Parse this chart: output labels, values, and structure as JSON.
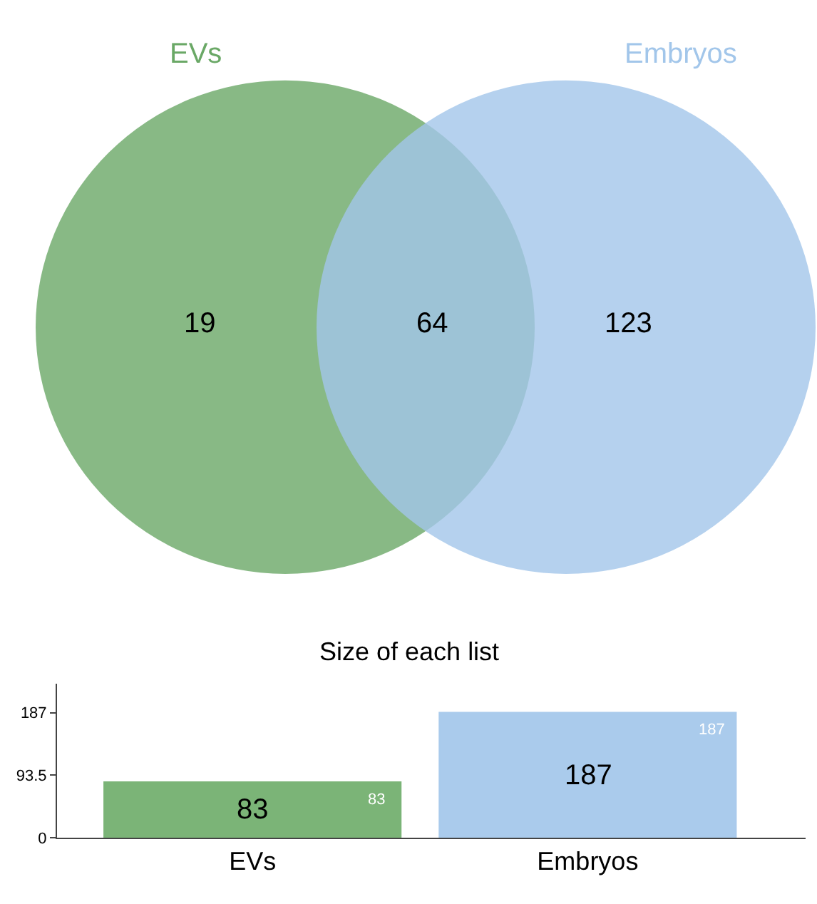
{
  "chart_data": [
    {
      "type": "other",
      "categories": [
        "EVs",
        "Embryos"
      ],
      "colors": [
        "#6aa866",
        "#a2c6ea"
      ],
      "annotations": [
        "19",
        "64",
        "123"
      ]
    },
    {
      "type": "bar",
      "title": "Size of each list",
      "categories": [
        "EVs",
        "Embryos"
      ],
      "values": [
        83,
        187
      ],
      "colors": [
        "#7bb477",
        "#aacbec"
      ],
      "ylim": [
        0,
        230
      ],
      "yticks": [
        0,
        93.5,
        187
      ],
      "value_labels": [
        "83",
        "187"
      ],
      "annotations": [
        "83",
        "187"
      ]
    }
  ]
}
